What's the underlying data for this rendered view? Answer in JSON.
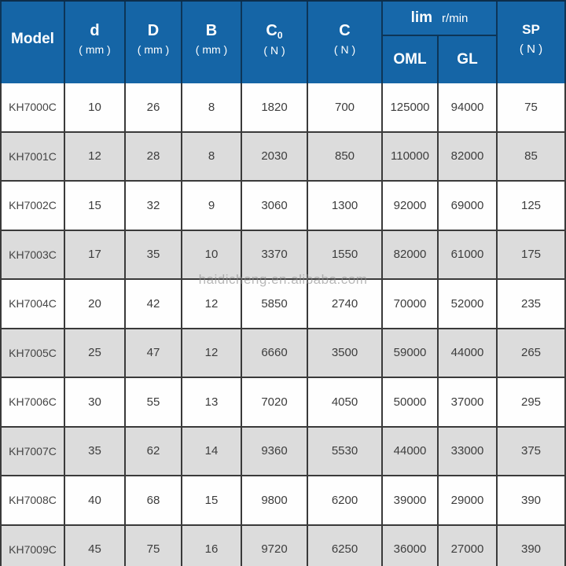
{
  "watermark": "haidicheng.en.alibaba.com",
  "colors": {
    "header_bg": "#1565a6",
    "header_lim_bg": "#1768aa",
    "header_border": "#0d3557",
    "header_text": "#ffffff",
    "body_border": "#3a3a3a",
    "body_text": "#3d3d3d",
    "row_even_bg": "#fefefe",
    "row_odd_bg": "#dcdcdc",
    "watermark_color": "#8a8a8a"
  },
  "header": {
    "columns": [
      {
        "label": "Model",
        "unit": ""
      },
      {
        "label": "d",
        "unit": "( mm )"
      },
      {
        "label": "D",
        "unit": "( mm )"
      },
      {
        "label": "B",
        "unit": "( mm )"
      },
      {
        "label": "C",
        "sub": "0",
        "unit": "( N )"
      },
      {
        "label": "C",
        "unit": "( N )"
      },
      {
        "label": "OML",
        "unit": ""
      },
      {
        "label": "GL",
        "unit": ""
      },
      {
        "label": "SP",
        "unit": "( N )"
      }
    ],
    "speed_group": {
      "label": "lim",
      "unit_label": "r/min"
    }
  },
  "rows": [
    [
      "KH7000C",
      "10",
      "26",
      "8",
      "1820",
      "700",
      "125000",
      "94000",
      "75"
    ],
    [
      "KH7001C",
      "12",
      "28",
      "8",
      "2030",
      "850",
      "110000",
      "82000",
      "85"
    ],
    [
      "KH7002C",
      "15",
      "32",
      "9",
      "3060",
      "1300",
      "92000",
      "69000",
      "125"
    ],
    [
      "KH7003C",
      "17",
      "35",
      "10",
      "3370",
      "1550",
      "82000",
      "61000",
      "175"
    ],
    [
      "KH7004C",
      "20",
      "42",
      "12",
      "5850",
      "2740",
      "70000",
      "52000",
      "235"
    ],
    [
      "KH7005C",
      "25",
      "47",
      "12",
      "6660",
      "3500",
      "59000",
      "44000",
      "265"
    ],
    [
      "KH7006C",
      "30",
      "55",
      "13",
      "7020",
      "4050",
      "50000",
      "37000",
      "295"
    ],
    [
      "KH7007C",
      "35",
      "62",
      "14",
      "9360",
      "5530",
      "44000",
      "33000",
      "375"
    ],
    [
      "KH7008C",
      "40",
      "68",
      "15",
      "9800",
      "6200",
      "39000",
      "29000",
      "390"
    ],
    [
      "KH7009C",
      "45",
      "75",
      "16",
      "9720",
      "6250",
      "36000",
      "27000",
      "390"
    ]
  ]
}
